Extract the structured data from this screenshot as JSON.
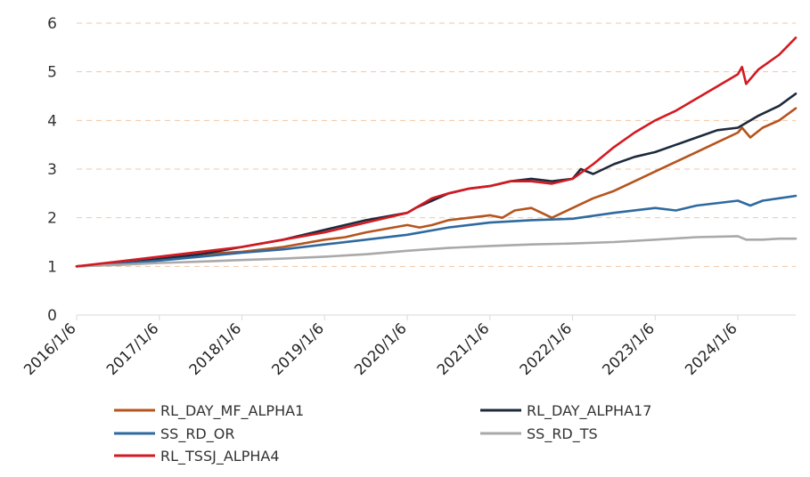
{
  "chart_data": {
    "type": "line",
    "title": "",
    "xlabel": "",
    "ylabel": "",
    "ylim": [
      0,
      6
    ],
    "yticks": [
      0,
      1,
      2,
      3,
      4,
      5,
      6
    ],
    "xticks": [
      "2016/1/6",
      "2017/1/6",
      "2018/1/6",
      "2019/1/6",
      "2020/1/6",
      "2021/1/6",
      "2022/1/6",
      "2023/1/6",
      "2024/1/6"
    ],
    "xlim": [
      2016.0,
      2024.7
    ],
    "grid": "horizontal dashed",
    "legend_position": "bottom",
    "series": [
      {
        "name": "RL_DAY_MF_ALPHA1",
        "color": "#b5541d",
        "x": [
          2016.0,
          2016.5,
          2017.0,
          2017.5,
          2018.0,
          2018.5,
          2019.0,
          2019.25,
          2019.5,
          2020.0,
          2020.15,
          2020.3,
          2020.5,
          2020.75,
          2021.0,
          2021.15,
          2021.3,
          2021.5,
          2021.75,
          2022.0,
          2022.25,
          2022.5,
          2022.75,
          2023.0,
          2023.25,
          2023.5,
          2023.75,
          2024.0,
          2024.05,
          2024.15,
          2024.3,
          2024.5,
          2024.7
        ],
        "y": [
          1.0,
          1.05,
          1.15,
          1.25,
          1.3,
          1.4,
          1.55,
          1.6,
          1.7,
          1.85,
          1.8,
          1.85,
          1.95,
          2.0,
          2.05,
          2.0,
          2.15,
          2.2,
          2.0,
          2.2,
          2.4,
          2.55,
          2.75,
          2.95,
          3.15,
          3.35,
          3.55,
          3.75,
          3.85,
          3.65,
          3.85,
          4.0,
          4.25
        ]
      },
      {
        "name": "RL_DAY_ALPHA17",
        "color": "#1e2a3c",
        "x": [
          2016.0,
          2016.5,
          2017.0,
          2017.5,
          2018.0,
          2018.5,
          2019.0,
          2019.5,
          2020.0,
          2020.1,
          2020.3,
          2020.5,
          2020.75,
          2021.0,
          2021.25,
          2021.5,
          2021.75,
          2022.0,
          2022.1,
          2022.25,
          2022.5,
          2022.75,
          2023.0,
          2023.25,
          2023.5,
          2023.75,
          2024.0,
          2024.1,
          2024.25,
          2024.5,
          2024.7
        ],
        "y": [
          1.0,
          1.05,
          1.15,
          1.25,
          1.4,
          1.55,
          1.75,
          1.95,
          2.1,
          2.2,
          2.35,
          2.5,
          2.6,
          2.65,
          2.75,
          2.8,
          2.75,
          2.8,
          3.0,
          2.9,
          3.1,
          3.25,
          3.35,
          3.5,
          3.65,
          3.8,
          3.85,
          3.95,
          4.1,
          4.3,
          4.55
        ]
      },
      {
        "name": "SS_RD_OR",
        "color": "#2e6aa0",
        "x": [
          2016.0,
          2016.5,
          2017.0,
          2017.5,
          2018.0,
          2018.5,
          2019.0,
          2019.5,
          2020.0,
          2020.5,
          2021.0,
          2021.5,
          2022.0,
          2022.5,
          2023.0,
          2023.25,
          2023.5,
          2024.0,
          2024.15,
          2024.3,
          2024.5,
          2024.7
        ],
        "y": [
          1.0,
          1.05,
          1.12,
          1.2,
          1.28,
          1.35,
          1.45,
          1.55,
          1.65,
          1.8,
          1.9,
          1.95,
          1.98,
          2.1,
          2.2,
          2.15,
          2.25,
          2.35,
          2.25,
          2.35,
          2.4,
          2.45
        ]
      },
      {
        "name": "SS_RD_TS",
        "color": "#a9a9a9",
        "x": [
          2016.0,
          2016.5,
          2017.0,
          2017.5,
          2018.0,
          2018.5,
          2019.0,
          2019.5,
          2020.0,
          2020.5,
          2021.0,
          2021.5,
          2022.0,
          2022.5,
          2023.0,
          2023.5,
          2024.0,
          2024.1,
          2024.3,
          2024.5,
          2024.7
        ],
        "y": [
          1.0,
          1.03,
          1.07,
          1.1,
          1.13,
          1.16,
          1.2,
          1.25,
          1.32,
          1.38,
          1.42,
          1.45,
          1.47,
          1.5,
          1.55,
          1.6,
          1.62,
          1.55,
          1.55,
          1.57,
          1.57
        ]
      },
      {
        "name": "RL_TSSJ_ALPHA4",
        "color": "#d41920",
        "x": [
          2016.0,
          2016.5,
          2017.0,
          2017.5,
          2018.0,
          2018.5,
          2019.0,
          2019.5,
          2020.0,
          2020.1,
          2020.3,
          2020.5,
          2020.75,
          2021.0,
          2021.25,
          2021.5,
          2021.75,
          2022.0,
          2022.25,
          2022.5,
          2022.75,
          2023.0,
          2023.25,
          2023.5,
          2023.75,
          2024.0,
          2024.05,
          2024.1,
          2024.25,
          2024.5,
          2024.7
        ],
        "y": [
          1.0,
          1.1,
          1.2,
          1.3,
          1.4,
          1.55,
          1.7,
          1.9,
          2.1,
          2.2,
          2.4,
          2.5,
          2.6,
          2.65,
          2.75,
          2.75,
          2.7,
          2.8,
          3.1,
          3.45,
          3.75,
          4.0,
          4.2,
          4.45,
          4.7,
          4.95,
          5.1,
          4.75,
          5.05,
          5.35,
          5.7
        ]
      }
    ]
  }
}
